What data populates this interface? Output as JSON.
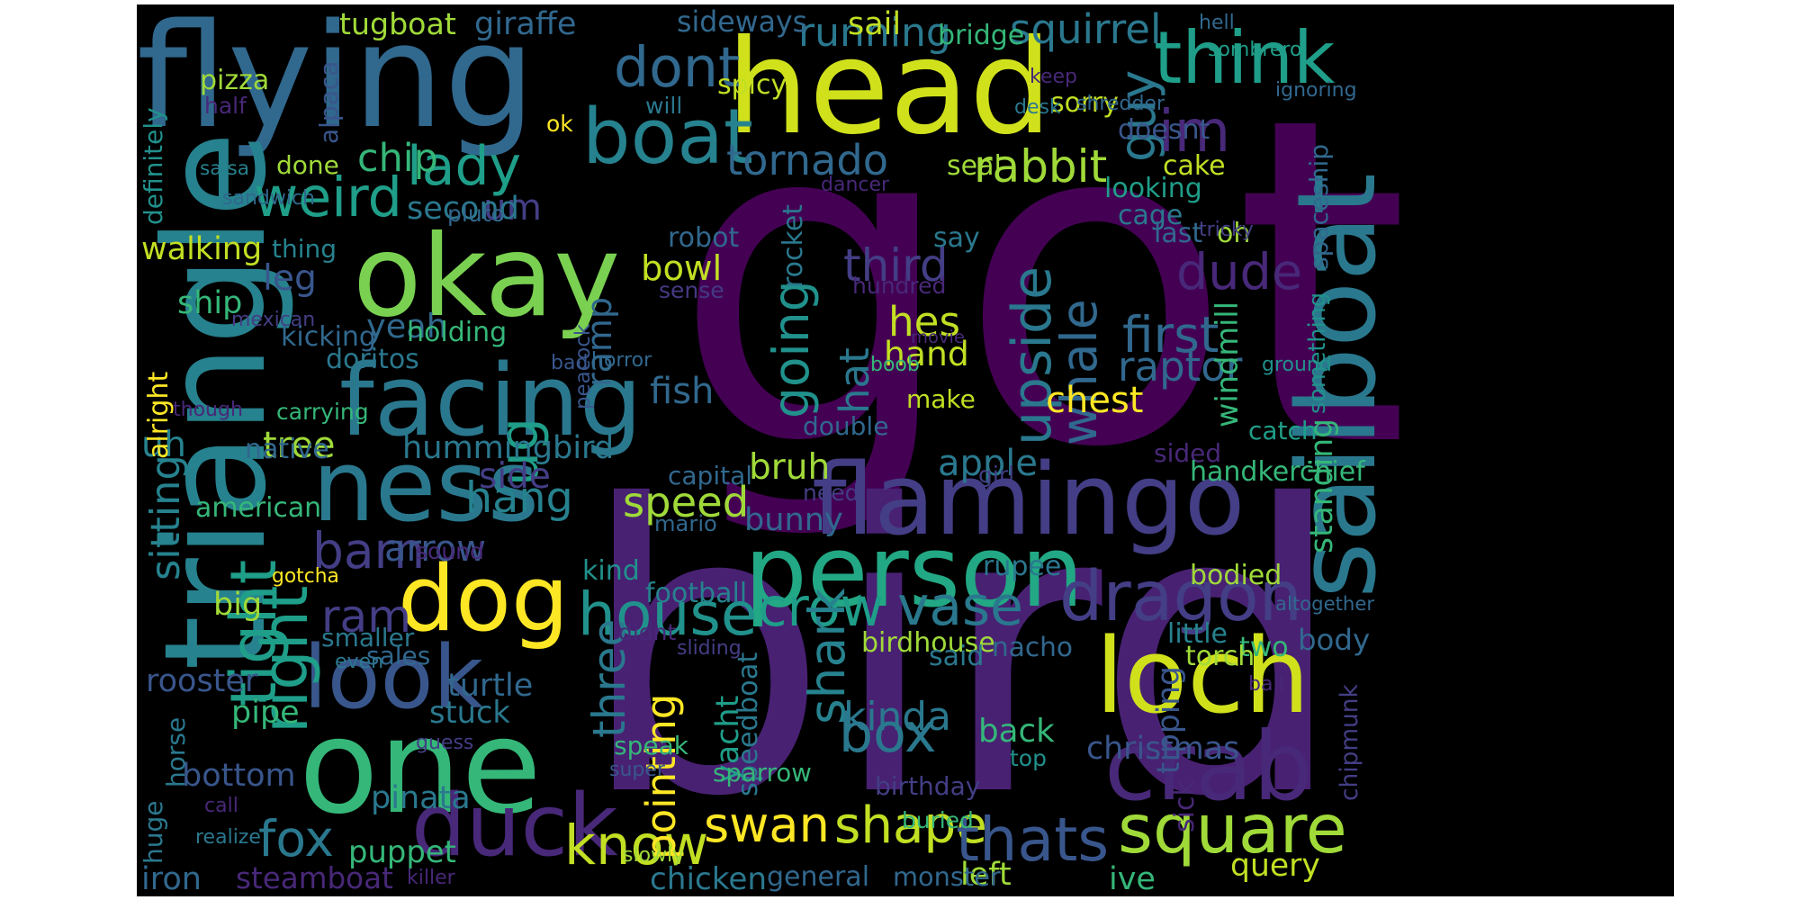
{
  "words": [
    {
      "text": "got",
      "color": "#440154"
    },
    {
      "text": "bird",
      "color": "#482173"
    },
    {
      "text": "flying",
      "color": "#31688e"
    },
    {
      "text": "head",
      "color": "#d0e11c"
    },
    {
      "text": "okay",
      "color": "#7ad151"
    },
    {
      "text": "triangle",
      "color": "#26828e"
    },
    {
      "text": "one",
      "color": "#35b779"
    },
    {
      "text": "flamingo",
      "color": "#433e85"
    },
    {
      "text": "person",
      "color": "#22a884"
    },
    {
      "text": "sailboat",
      "color": "#2a788e"
    },
    {
      "text": "ness",
      "color": "#2a788e"
    },
    {
      "text": "facing",
      "color": "#2a788e"
    },
    {
      "text": "loch",
      "color": "#d0e11c"
    },
    {
      "text": "dog",
      "color": "#fde725"
    },
    {
      "text": "crab",
      "color": "#482878"
    },
    {
      "text": "look",
      "color": "#39568c"
    },
    {
      "text": "duck",
      "color": "#482878"
    },
    {
      "text": "boat",
      "color": "#26828e"
    },
    {
      "text": "think",
      "color": "#1f9e89"
    },
    {
      "text": "dragon",
      "color": "#433e85"
    },
    {
      "text": "square",
      "color": "#a0da39"
    },
    {
      "text": "house",
      "color": "#21918c"
    },
    {
      "text": "crow",
      "color": "#1f9e89"
    },
    {
      "text": "vase",
      "color": "#2a788e"
    },
    {
      "text": "swan",
      "color": "#fde725"
    },
    {
      "text": "shape",
      "color": "#c2df23"
    },
    {
      "text": "thats",
      "color": "#39568c"
    },
    {
      "text": "know",
      "color": "#c2df23"
    },
    {
      "text": "right",
      "color": "#1f9e89"
    },
    {
      "text": "tight",
      "color": "#1f9e89"
    },
    {
      "text": "whale",
      "color": "#31688e"
    },
    {
      "text": "upside",
      "color": "#2a788e"
    },
    {
      "text": "guy",
      "color": "#2a788e"
    },
    {
      "text": "dont",
      "color": "#31688e"
    },
    {
      "text": "im",
      "color": "#482878"
    },
    {
      "text": "weird",
      "color": "#1f9e89"
    },
    {
      "text": "lady",
      "color": "#1f9e89"
    },
    {
      "text": "tornado",
      "color": "#31688e"
    },
    {
      "text": "rabbit",
      "color": "#a0da39"
    },
    {
      "text": "running",
      "color": "#2a788e"
    },
    {
      "text": "squirrel",
      "color": "#2a788e"
    },
    {
      "text": "going",
      "color": "#21918c"
    },
    {
      "text": "shark",
      "color": "#26828e"
    },
    {
      "text": "box",
      "color": "#2a788e"
    },
    {
      "text": "first",
      "color": "#31688e"
    },
    {
      "text": "raptor",
      "color": "#31688e"
    },
    {
      "text": "dude",
      "color": "#482878"
    },
    {
      "text": "hang",
      "color": "#26828e"
    },
    {
      "text": "speed",
      "color": "#a0da39"
    },
    {
      "text": "barn",
      "color": "#433e85"
    },
    {
      "text": "ram",
      "color": "#433e85"
    },
    {
      "text": "fox",
      "color": "#2a788e"
    },
    {
      "text": "um",
      "color": "#433e85"
    },
    {
      "text": "ug",
      "color": "#1f9e89"
    },
    {
      "text": "third",
      "color": "#433e85"
    },
    {
      "text": "hes",
      "color": "#c2df23"
    },
    {
      "text": "hat",
      "color": "#2a788e"
    },
    {
      "text": "hand",
      "color": "#c2df23"
    },
    {
      "text": "three",
      "color": "#2a788e"
    },
    {
      "text": "pointing",
      "color": "#fde725"
    },
    {
      "text": "bowl",
      "color": "#c2df23"
    },
    {
      "text": "fish",
      "color": "#31688e"
    },
    {
      "text": "tree",
      "color": "#a0da39"
    },
    {
      "text": "yeah",
      "color": "#31688e"
    },
    {
      "text": "chip",
      "color": "#35b779"
    },
    {
      "text": "second",
      "color": "#2a788e"
    },
    {
      "text": "leg",
      "color": "#39568c"
    },
    {
      "text": "walking",
      "color": "#c2df23"
    },
    {
      "text": "ship",
      "color": "#35b779"
    },
    {
      "text": "uh",
      "color": "#26828e"
    },
    {
      "text": "side",
      "color": "#433e85"
    },
    {
      "text": "arrow",
      "color": "#39568c"
    },
    {
      "text": "hummingbird",
      "color": "#2a788e"
    },
    {
      "text": "sitting",
      "color": "#26828e"
    },
    {
      "text": "apple",
      "color": "#2a788e"
    },
    {
      "text": "bruh",
      "color": "#a0da39"
    },
    {
      "text": "bunny",
      "color": "#31688e"
    },
    {
      "text": "chest",
      "color": "#fde725"
    },
    {
      "text": "kinda",
      "color": "#2a788e"
    },
    {
      "text": "back",
      "color": "#35b779"
    },
    {
      "text": "christmas",
      "color": "#39568c"
    },
    {
      "text": "rooster",
      "color": "#39568c"
    },
    {
      "text": "stuck",
      "color": "#2a788e"
    },
    {
      "text": "turtle",
      "color": "#31688e"
    },
    {
      "text": "puppet",
      "color": "#35b779"
    },
    {
      "text": "pinata",
      "color": "#2a788e"
    },
    {
      "text": "steamboat",
      "color": "#482878"
    },
    {
      "text": "general",
      "color": "#31688e"
    },
    {
      "text": "chicken",
      "color": "#2a788e"
    },
    {
      "text": "left",
      "color": "#a0da39"
    },
    {
      "text": "ive",
      "color": "#35b779"
    },
    {
      "text": "query",
      "color": "#c2df23"
    },
    {
      "text": "monster",
      "color": "#31688e"
    },
    {
      "text": "iron",
      "color": "#31688e"
    },
    {
      "text": "bottom",
      "color": "#39568c"
    },
    {
      "text": "pipe",
      "color": "#35b779"
    },
    {
      "text": "big",
      "color": "#a0da39"
    },
    {
      "text": "american",
      "color": "#35b779"
    },
    {
      "text": "native",
      "color": "#31688e"
    },
    {
      "text": "tugboat",
      "color": "#a0da39"
    },
    {
      "text": "giraffe",
      "color": "#31688e"
    },
    {
      "text": "sideways",
      "color": "#31688e"
    },
    {
      "text": "sail",
      "color": "#c2df23"
    },
    {
      "text": "bridge",
      "color": "#35b779"
    },
    {
      "text": "sorry",
      "color": "#c2df23"
    },
    {
      "text": "pizza",
      "color": "#a0da39"
    },
    {
      "text": "spicy",
      "color": "#c2df23"
    },
    {
      "text": "doesnt",
      "color": "#39568c"
    },
    {
      "text": "cake",
      "color": "#c2df23"
    },
    {
      "text": "looking",
      "color": "#1f9e89"
    },
    {
      "text": "cage",
      "color": "#2a788e"
    },
    {
      "text": "seal",
      "color": "#a0da39"
    },
    {
      "text": "oh",
      "color": "#a0da39"
    },
    {
      "text": "last",
      "color": "#31688e"
    },
    {
      "text": "say",
      "color": "#2a788e"
    },
    {
      "text": "robot",
      "color": "#31688e"
    },
    {
      "text": "thing",
      "color": "#26828e"
    },
    {
      "text": "doritos",
      "color": "#2a788e"
    },
    {
      "text": "holding",
      "color": "#35b779"
    },
    {
      "text": "kicking",
      "color": "#31688e"
    },
    {
      "text": "ramp",
      "color": "#31688e"
    },
    {
      "text": "make",
      "color": "#c2df23"
    },
    {
      "text": "double",
      "color": "#31688e"
    },
    {
      "text": "capital",
      "color": "#31688e"
    },
    {
      "text": "sided",
      "color": "#482878"
    },
    {
      "text": "handkerchief",
      "color": "#35b779"
    },
    {
      "text": "catch",
      "color": "#1f9e89"
    },
    {
      "text": "standing",
      "color": "#35b779"
    },
    {
      "text": "windmill",
      "color": "#35b779"
    },
    {
      "text": "bodied",
      "color": "#a0da39"
    },
    {
      "text": "body",
      "color": "#31688e"
    },
    {
      "text": "two",
      "color": "#35b779"
    },
    {
      "text": "little",
      "color": "#26828e"
    },
    {
      "text": "torch",
      "color": "#a0da39"
    },
    {
      "text": "football",
      "color": "#26828e"
    },
    {
      "text": "birdhouse",
      "color": "#a0da39"
    },
    {
      "text": "nacho",
      "color": "#31688e"
    },
    {
      "text": "said",
      "color": "#2a788e"
    },
    {
      "text": "rupee",
      "color": "#2a788e"
    },
    {
      "text": "kind",
      "color": "#21918c"
    },
    {
      "text": "sales",
      "color": "#31688e"
    },
    {
      "text": "smaller",
      "color": "#2a788e"
    },
    {
      "text": "speak",
      "color": "#35b779"
    },
    {
      "text": "yacht",
      "color": "#1f9e89"
    },
    {
      "text": "speedboat",
      "color": "#2a788e"
    },
    {
      "text": "tipping",
      "color": "#39568c"
    },
    {
      "text": "chipmunk",
      "color": "#433e85"
    },
    {
      "text": "sparrow",
      "color": "#35b779"
    },
    {
      "text": "birthday",
      "color": "#433e85"
    },
    {
      "text": "buried",
      "color": "#35b779"
    },
    {
      "text": "top",
      "color": "#21918c"
    },
    {
      "text": "horse",
      "color": "#2a788e"
    },
    {
      "text": "huge",
      "color": "#2a788e"
    },
    {
      "text": "gotcha",
      "color": "#fde725"
    },
    {
      "text": "sound",
      "color": "#482878"
    },
    {
      "text": "mario",
      "color": "#31688e"
    },
    {
      "text": "need",
      "color": "#433e85"
    },
    {
      "text": "girl",
      "color": "#433e85"
    },
    {
      "text": "movie",
      "color": "#482878"
    },
    {
      "text": "hundred",
      "color": "#482878"
    },
    {
      "text": "sense",
      "color": "#443a83"
    },
    {
      "text": "boob",
      "color": "#35b779"
    },
    {
      "text": "bad",
      "color": "#39568c"
    },
    {
      "text": "horror",
      "color": "#31688e"
    },
    {
      "text": "peacock",
      "color": "#39568c"
    },
    {
      "text": "rocket",
      "color": "#2a788e"
    },
    {
      "text": "dancer",
      "color": "#482878"
    },
    {
      "text": "salsa",
      "color": "#26828e"
    },
    {
      "text": "sandwich",
      "color": "#31688e"
    },
    {
      "text": "pluto",
      "color": "#31688e"
    },
    {
      "text": "done",
      "color": "#a0da39"
    },
    {
      "text": "alpaca",
      "color": "#39568c"
    },
    {
      "text": "half",
      "color": "#482878"
    },
    {
      "text": "ok",
      "color": "#fde725"
    },
    {
      "text": "will",
      "color": "#2a788e"
    },
    {
      "text": "desk",
      "color": "#2a788e"
    },
    {
      "text": "shredder",
      "color": "#31688e"
    },
    {
      "text": "ignoring",
      "color": "#31688e"
    },
    {
      "text": "keep",
      "color": "#482878"
    },
    {
      "text": "hell",
      "color": "#31688e"
    },
    {
      "text": "sombrero",
      "color": "#1f9e89"
    },
    {
      "text": "definitely",
      "color": "#21918c"
    },
    {
      "text": "mexican",
      "color": "#433e85"
    },
    {
      "text": "alright",
      "color": "#fde725"
    },
    {
      "text": "though",
      "color": "#482878"
    },
    {
      "text": "carrying",
      "color": "#35b779"
    },
    {
      "text": "tricky",
      "color": "#433e85"
    },
    {
      "text": "spaceship",
      "color": "#31688e"
    },
    {
      "text": "something",
      "color": "#21918c"
    },
    {
      "text": "ground",
      "color": "#21918c"
    },
    {
      "text": "altogether",
      "color": "#31688e"
    },
    {
      "text": "ball",
      "color": "#482878"
    },
    {
      "text": "guess",
      "color": "#433e85"
    },
    {
      "text": "even",
      "color": "#2a788e"
    },
    {
      "text": "didnt",
      "color": "#482878"
    },
    {
      "text": "sliding",
      "color": "#433e85"
    },
    {
      "text": "super",
      "color": "#39568c"
    },
    {
      "text": "sick",
      "color": "#482878"
    },
    {
      "text": "slowly",
      "color": "#a0da39"
    },
    {
      "text": "killer",
      "color": "#482878"
    },
    {
      "text": "call",
      "color": "#482878"
    },
    {
      "text": "realize",
      "color": "#2a788e"
    }
  ]
}
